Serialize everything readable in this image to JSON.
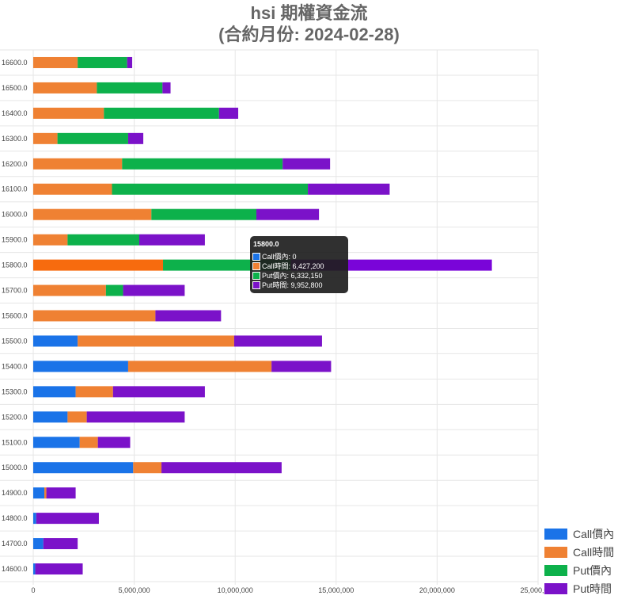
{
  "title": {
    "line1": "hsi 期權資金流",
    "line2": "(合約月份: 2024-02-28)"
  },
  "colors": {
    "call_itm": "#1a73e8",
    "call_time": "#ef8133",
    "put_itm": "#0db14b",
    "put_time": "#7b12c9",
    "highlight_call_time": "#f76b0e",
    "highlight_put_time": "#7a05d9"
  },
  "chart_data": {
    "type": "bar",
    "orientation": "horizontal",
    "stacked": true,
    "categories": [
      "16600.0",
      "16500.0",
      "16400.0",
      "16300.0",
      "16200.0",
      "16100.0",
      "16000.0",
      "15900.0",
      "15800.0",
      "15700.0",
      "15600.0",
      "15500.0",
      "15400.0",
      "15300.0",
      "15200.0",
      "15100.0",
      "15000.0",
      "14900.0",
      "14800.0",
      "14700.0",
      "14600.0"
    ],
    "series": [
      {
        "name": "Call價內",
        "color_key": "call_itm",
        "values": [
          0,
          0,
          0,
          0,
          0,
          0,
          0,
          0,
          0,
          0,
          0,
          2200000,
          4700000,
          2100000,
          1700000,
          2300000,
          4950000,
          550000,
          150000,
          500000,
          100000
        ]
      },
      {
        "name": "Call時間",
        "color_key": "call_time",
        "values": [
          2200000,
          3150000,
          3500000,
          1200000,
          4400000,
          3900000,
          5850000,
          1700000,
          6427200,
          3600000,
          6050000,
          7750000,
          7100000,
          1850000,
          950000,
          900000,
          1400000,
          100000,
          0,
          0,
          0
        ]
      },
      {
        "name": "Put價內",
        "color_key": "put_itm",
        "values": [
          2450000,
          3250000,
          5700000,
          3500000,
          7950000,
          9700000,
          5200000,
          3550000,
          6332150,
          850000,
          0,
          0,
          0,
          0,
          0,
          0,
          0,
          0,
          0,
          0,
          0
        ]
      },
      {
        "name": "Put時間",
        "color_key": "put_time",
        "values": [
          250000,
          400000,
          950000,
          750000,
          2350000,
          4050000,
          3100000,
          3250000,
          9952800,
          3050000,
          3250000,
          4350000,
          2950000,
          4550000,
          4850000,
          1600000,
          5950000,
          1450000,
          3100000,
          1700000,
          2350000
        ]
      }
    ],
    "x_ticks": [
      "0",
      "5,000,000",
      "10,000,000",
      "15,000,000",
      "20,000,000",
      "25,000,000"
    ],
    "xlim": [
      0,
      25000000
    ],
    "grid": true,
    "legend_position": "bottom-right",
    "highlighted_category": "15800.0"
  },
  "tooltip": {
    "title": "15800.0",
    "rows": [
      {
        "text": "Call價內: 0",
        "color_key": "call_itm"
      },
      {
        "text": "Call時間: 6,427,200",
        "color_key": "call_time"
      },
      {
        "text": "Put價內: 6,332,150",
        "color_key": "put_itm"
      },
      {
        "text": "Put時間: 9,952,800",
        "color_key": "put_time"
      }
    ]
  }
}
